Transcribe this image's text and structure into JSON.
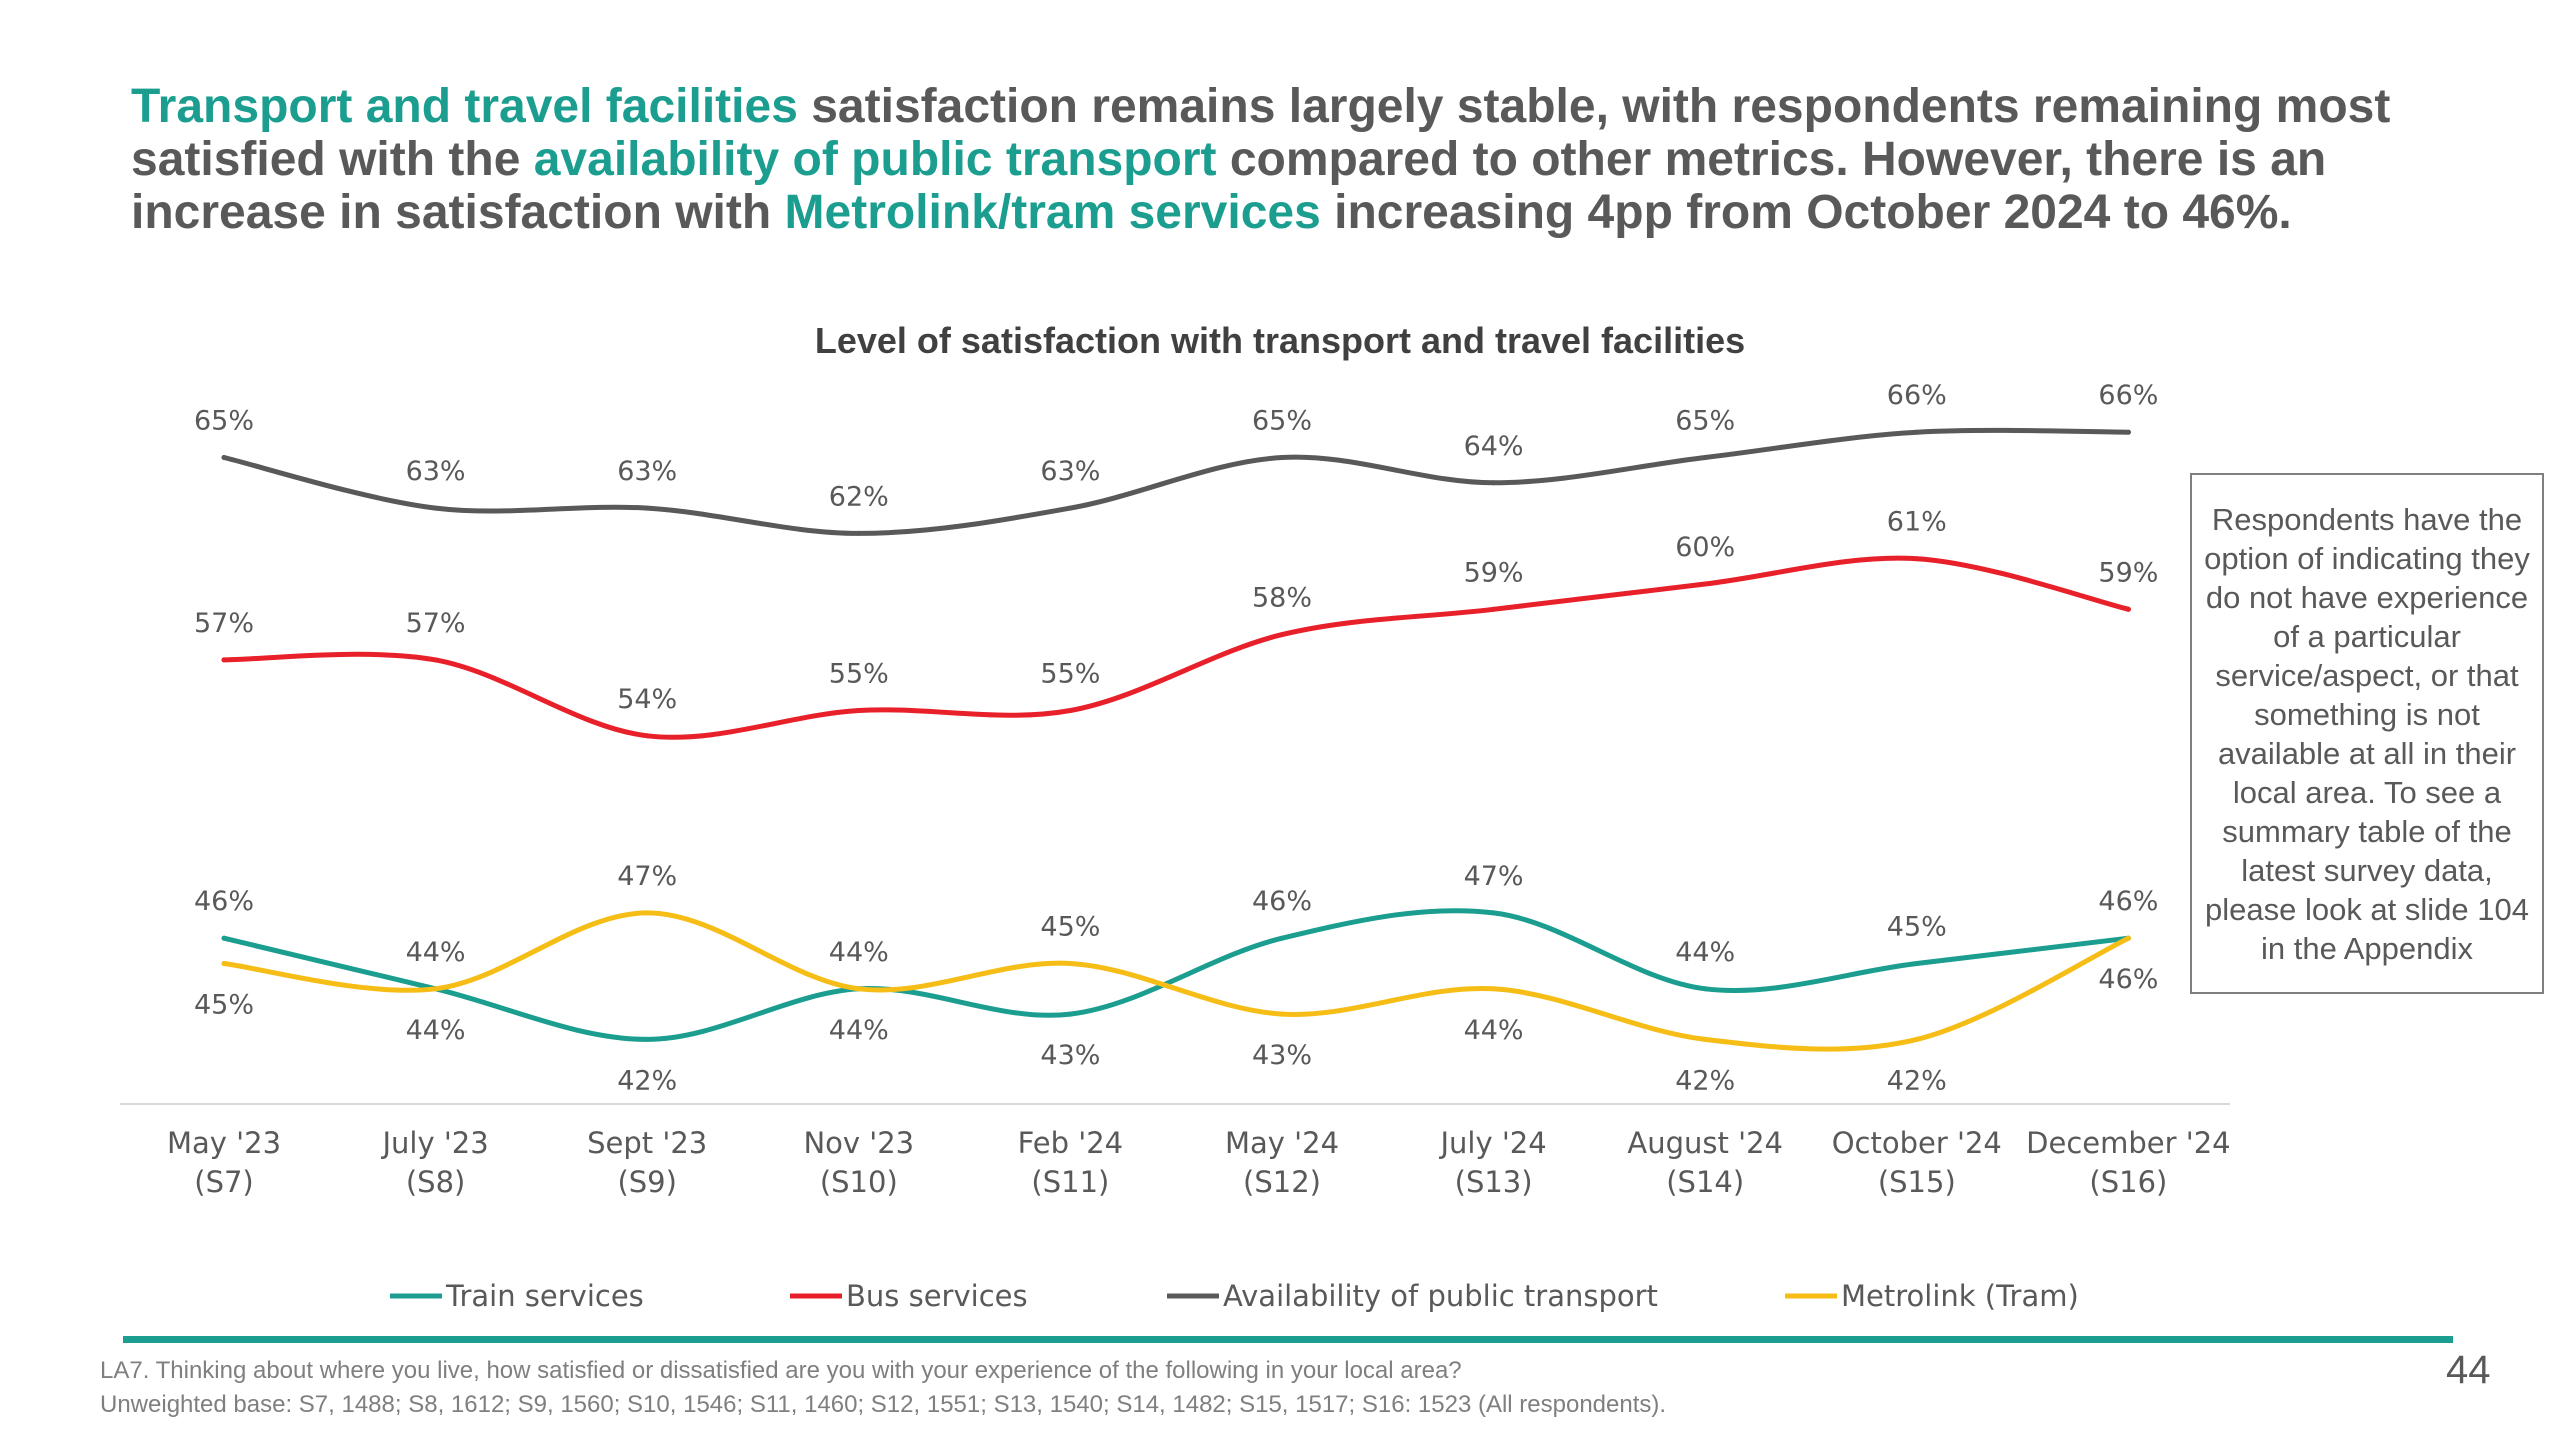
{
  "headline": {
    "seg1": "Transport and travel facilities",
    "seg2": " satisfaction remains largely stable, with respondents remaining most satisfied with the ",
    "seg3": "availability of public transport",
    "seg4": " compared to other metrics. However, there is an increase in satisfaction with ",
    "seg5": "Metrolink/tram services",
    "seg6": " increasing 4pp from October 2024 to 46%."
  },
  "side_note": "Respondents have the option of indicating they do not have experience of a particular service/aspect, or that something is not available at all in their local area. To see a summary table of the latest survey data, please look at slide 104 in the Appendix",
  "footnote": {
    "question": "LA7. Thinking about where you live, how satisfied or dissatisfied are you with your experience of the following in your local area?",
    "base": "Unweighted base: S7, 1488; S8, 1612; S9, 1560; S10, 1546; S11, 1460; S12, 1551; S13, 1540; S14, 1482; S15, 1517; S16: 1523 (All respondents)."
  },
  "page_number": "44",
  "colors": {
    "accent": "#1b9e8f",
    "text": "#595959",
    "train": "#1b9e8f",
    "bus": "#e8202a",
    "availability": "#595959",
    "metrolink": "#f5bd15"
  },
  "chart_data": {
    "type": "line",
    "title": "Level of satisfaction with transport and travel facilities",
    "categories": [
      [
        "May '23",
        "(S7)"
      ],
      [
        "July '23",
        "(S8)"
      ],
      [
        "Sept '23",
        "(S9)"
      ],
      [
        "Nov '23",
        "(S10)"
      ],
      [
        "Feb '24",
        "(S11)"
      ],
      [
        "May '24",
        "(S12)"
      ],
      [
        "July '24",
        "(S13)"
      ],
      [
        "August '24",
        "(S14)"
      ],
      [
        "October '24",
        "(S15)"
      ],
      [
        "December '24",
        "(S16)"
      ]
    ],
    "ylim": [
      30,
      70
    ],
    "grid": false,
    "legend_position": "bottom",
    "value_suffix": "%",
    "series": [
      {
        "key": "train",
        "name": "Train services",
        "color": "#1b9e8f",
        "values": [
          46,
          44,
          42,
          44,
          43,
          46,
          47,
          44,
          45,
          46
        ],
        "label_pos": [
          "above",
          "above",
          "below",
          "above",
          "below",
          "above",
          "above",
          "above",
          "above",
          "above"
        ]
      },
      {
        "key": "bus",
        "name": "Bus services",
        "color": "#e8202a",
        "values": [
          57,
          57,
          54,
          55,
          55,
          58,
          59,
          60,
          61,
          59
        ],
        "label_pos": [
          "above",
          "above",
          "above",
          "above",
          "above",
          "above",
          "above",
          "above",
          "above",
          "above"
        ]
      },
      {
        "key": "availability",
        "name": "Availability of public transport",
        "color": "#595959",
        "values": [
          65,
          63,
          63,
          62,
          63,
          65,
          64,
          65,
          66,
          66
        ],
        "label_pos": [
          "above",
          "above",
          "above",
          "above",
          "above",
          "above",
          "above",
          "above",
          "above",
          "above"
        ]
      },
      {
        "key": "metrolink",
        "name": "Metrolink (Tram)",
        "color": "#f5bd15",
        "values": [
          45,
          44,
          47,
          44,
          45,
          43,
          44,
          42,
          42,
          46
        ],
        "label_pos": [
          "below",
          "below",
          "above",
          "below",
          "above",
          "below",
          "below",
          "below",
          "below",
          "below"
        ]
      }
    ]
  }
}
